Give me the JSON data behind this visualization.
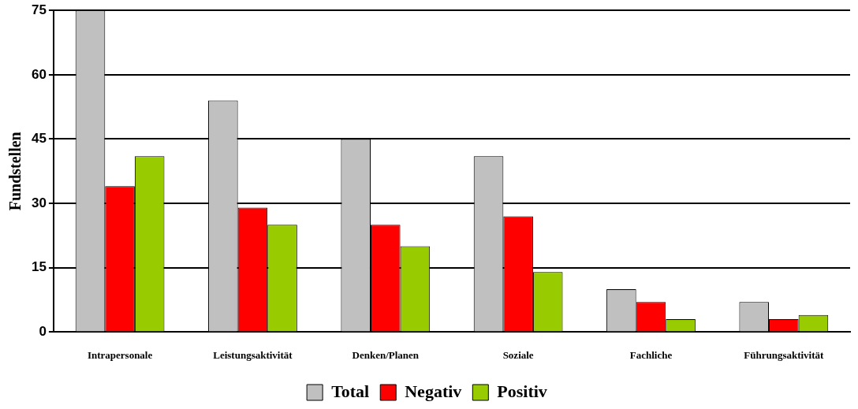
{
  "chart_data": {
    "type": "bar",
    "ylabel": "Fundstellen",
    "categories": [
      "Intrapersonale",
      "Leistungsaktivität",
      "Denken/Planen",
      "Soziale",
      "Fachliche",
      "Führungsaktivität"
    ],
    "series": [
      {
        "name": "Total",
        "color": "#c0c0c0",
        "values": [
          75,
          54,
          45,
          41,
          10,
          7
        ]
      },
      {
        "name": "Negativ",
        "color": "#ff0000",
        "values": [
          34,
          29,
          25,
          27,
          7,
          3
        ]
      },
      {
        "name": "Positiv",
        "color": "#99cc00",
        "values": [
          41,
          25,
          20,
          14,
          3,
          4
        ]
      }
    ],
    "ylim": [
      0,
      75
    ],
    "yticks": [
      0,
      15,
      30,
      45,
      60,
      75
    ],
    "grid": "y",
    "legend": "bottom"
  }
}
